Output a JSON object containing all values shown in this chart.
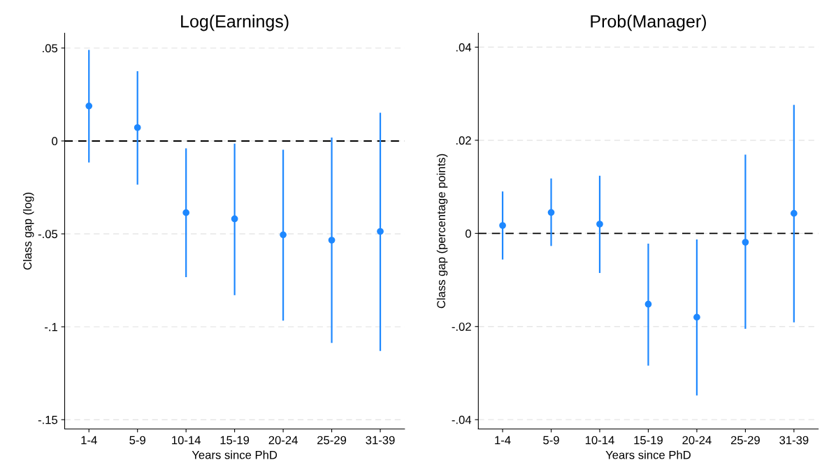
{
  "chart_data": [
    {
      "type": "scatter",
      "title": "Log(Earnings)",
      "xlabel": "Years since PhD",
      "ylabel": "Class gap (log)",
      "categories": [
        "1-4",
        "5-9",
        "10-14",
        "15-19",
        "20-24",
        "25-29",
        "31-39"
      ],
      "series": [
        {
          "color": "#1e88ff",
          "values": [
            0.0188,
            0.0072,
            -0.0386,
            -0.0419,
            -0.0505,
            -0.0534,
            -0.0487
          ],
          "errors": [
            [
              -0.0116,
              0.049
            ],
            [
              -0.0235,
              0.0375
            ],
            [
              -0.0733,
              -0.004
            ],
            [
              -0.083,
              -0.0014
            ],
            [
              -0.0967,
              -0.0047
            ],
            [
              -0.1087,
              0.0018
            ],
            [
              -0.113,
              0.0152
            ]
          ]
        }
      ],
      "ylim": [
        -0.155,
        0.058
      ],
      "yticks": [
        {
          "value": -0.15,
          "label": "-.15"
        },
        {
          "value": -0.1,
          "label": "-.1"
        },
        {
          "value": -0.05,
          "label": "-.05"
        },
        0,
        {
          "value": 0.05,
          "label": ".05"
        }
      ],
      "grid": "y",
      "marker": "circle",
      "legend": false,
      "ref_lines": [
        {
          "axis": "y",
          "value": 0,
          "color": "#000000",
          "line_style": "dashed"
        }
      ]
    },
    {
      "type": "scatter",
      "title": "Prob(Manager)",
      "xlabel": "Years since PhD",
      "ylabel": "Class gap (percentage points)",
      "categories": [
        "1-4",
        "5-9",
        "10-14",
        "15-19",
        "20-24",
        "25-29",
        "31-39"
      ],
      "series": [
        {
          "color": "#1e88ff",
          "values": [
            0.0017,
            0.0045,
            0.002,
            -0.0152,
            -0.018,
            -0.0019,
            0.0043
          ],
          "errors": [
            [
              -0.0056,
              0.009
            ],
            [
              -0.0027,
              0.0118
            ],
            [
              -0.0085,
              0.0124
            ],
            [
              -0.0284,
              -0.0022
            ],
            [
              -0.0348,
              -0.0013
            ],
            [
              -0.0205,
              0.0169
            ],
            [
              -0.0191,
              0.0276
            ]
          ]
        }
      ],
      "ylim": [
        -0.042,
        0.043
      ],
      "yticks": [
        {
          "value": -0.04,
          "label": "-.04"
        },
        {
          "value": -0.02,
          "label": "-.02"
        },
        0,
        {
          "value": 0.02,
          "label": ".02"
        },
        {
          "value": 0.04,
          "label": ".04"
        }
      ],
      "grid": "y",
      "marker": "circle",
      "legend": false,
      "ref_lines": [
        {
          "axis": "y",
          "value": 0,
          "color": "#000000",
          "line_style": "dashed"
        }
      ]
    }
  ]
}
